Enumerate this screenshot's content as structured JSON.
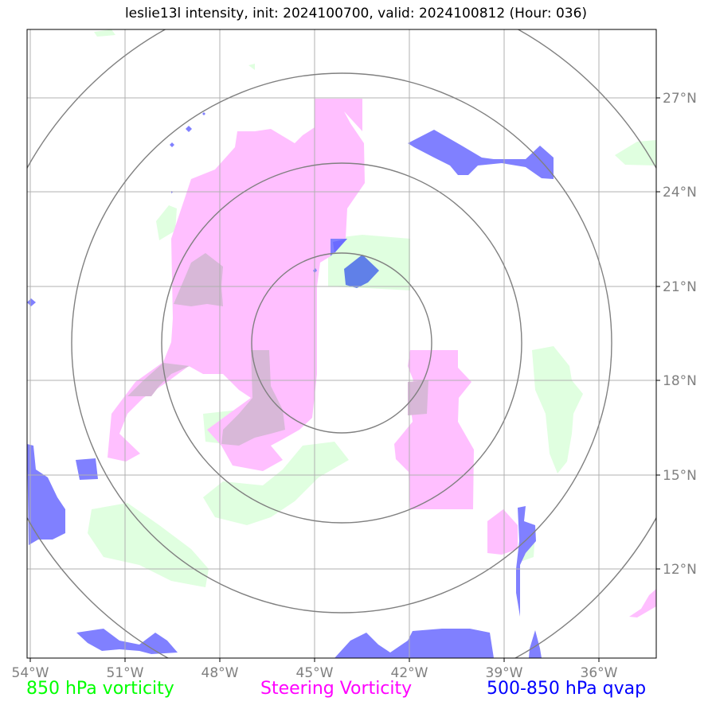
{
  "title": "leslie13l intensity, init: 2024100700, valid: 2024100812 (Hour: 036)",
  "lon_labels": [
    "54°W",
    "51°W",
    "48°W",
    "45°W",
    "42°W",
    "39°W",
    "36°W"
  ],
  "lat_labels": [
    "27°N",
    "24°N",
    "21°N",
    "18°N",
    "15°N",
    "12°N"
  ],
  "legend": {
    "vort850": "850 hPa vorticity",
    "steering": "Steering Vorticity",
    "qvap": "500-850 hPa qvap"
  },
  "colors": {
    "vort850": "#00ff00",
    "steering": "#ff00ff",
    "qvap": "#0000ff",
    "vort850_fill": "#e0ffe0",
    "steering_fill": "#ffbfff",
    "qvap_fill": "#8080ff",
    "grid": "#b0b0b0",
    "range_rings": "#808080"
  }
}
